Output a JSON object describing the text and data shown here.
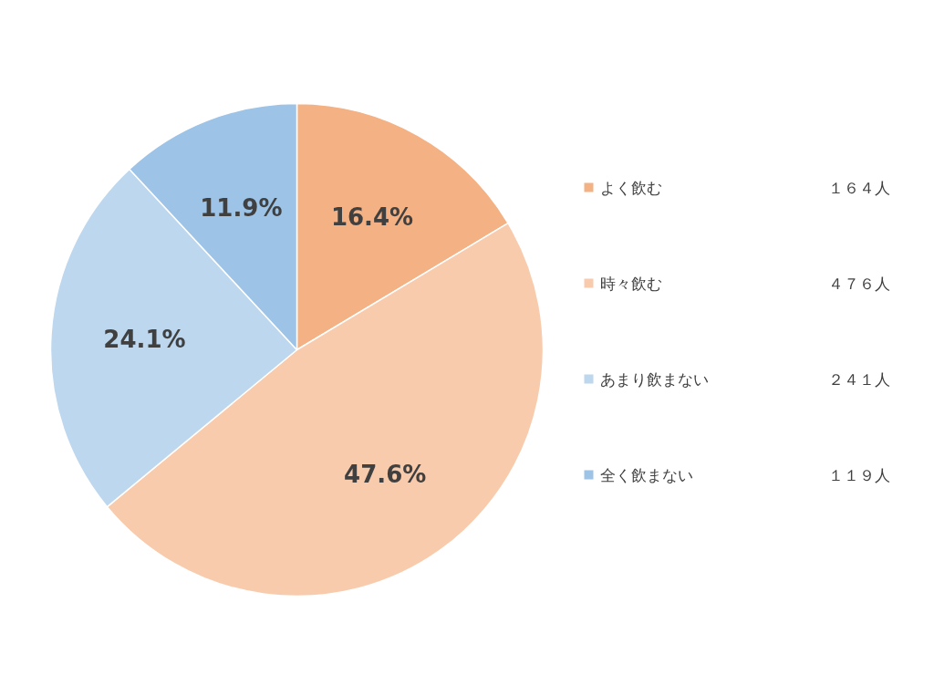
{
  "chart_data": {
    "type": "pie",
    "categories": [
      "よく飲む",
      "時々飲む",
      "あまり飲まない",
      "全く飲まない"
    ],
    "values": [
      16.4,
      47.6,
      24.1,
      11.9
    ],
    "value_labels": [
      "16.4%",
      "47.6%",
      "24.1%",
      "11.9%"
    ],
    "colors": [
      "#f4b183",
      "#f8cbad",
      "#bdd7ee",
      "#9dc3e6"
    ],
    "annotations": [
      "１６４人",
      "４７６人",
      "２４１人",
      "１１９人"
    ],
    "legend": "right"
  }
}
